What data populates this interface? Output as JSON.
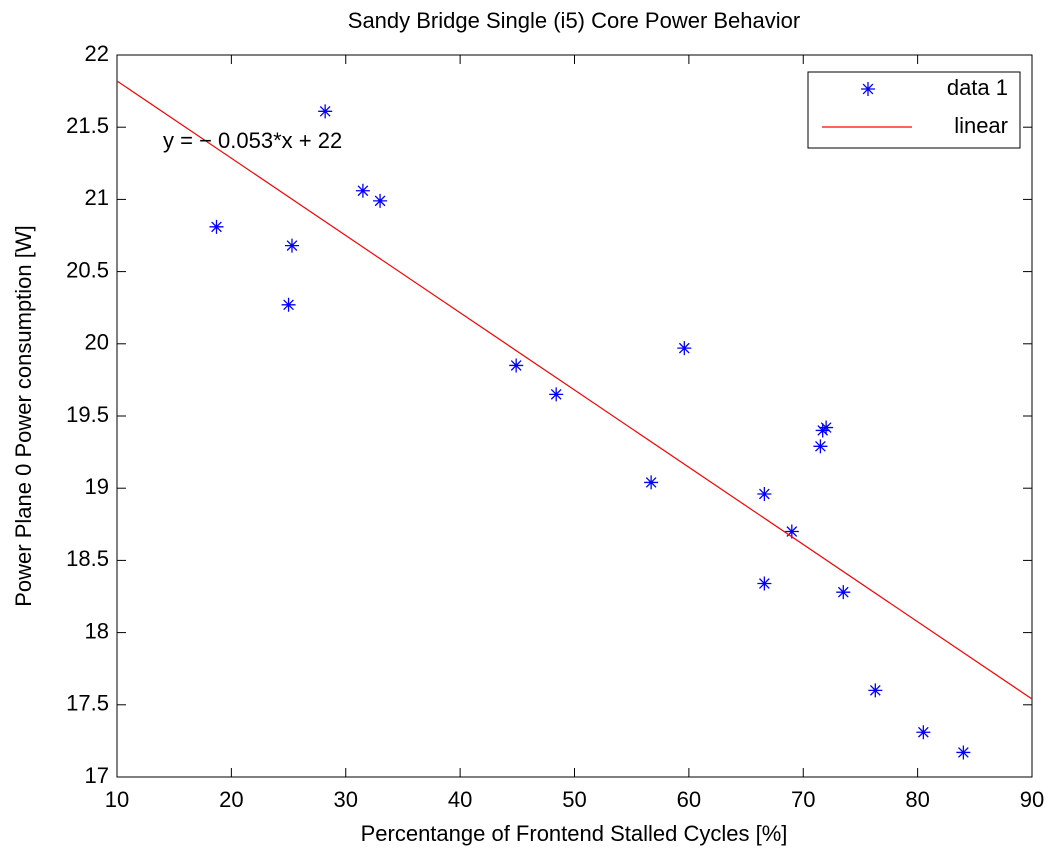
{
  "chart_data": {
    "type": "scatter",
    "title": "Sandy Bridge Single (i5) Core Power Behavior",
    "x_label": "Percentange of Frontend Stalled Cycles [%]",
    "y_label": "Power Plane 0 Power consumption [W]",
    "annotation": "y = − 0.053*x + 22",
    "xlim": [
      10,
      90
    ],
    "ylim": [
      17,
      22
    ],
    "xticks": [
      10,
      20,
      30,
      40,
      50,
      60,
      70,
      80,
      90
    ],
    "yticks": [
      17,
      17.5,
      18,
      18.5,
      19,
      19.5,
      20,
      20.5,
      21,
      21.5,
      22
    ],
    "legend": "upper right",
    "series": [
      {
        "name": "data 1",
        "color": "#0000ff",
        "marker": "*",
        "x": [
          18.7,
          25.3,
          25.0,
          28.2,
          31.5,
          33.0,
          44.9,
          48.4,
          56.7,
          59.6,
          66.6,
          66.6,
          69.0,
          71.5,
          71.7,
          72.0,
          73.5,
          76.3,
          80.5,
          84.0
        ],
        "values": [
          20.81,
          20.68,
          20.27,
          21.61,
          21.06,
          20.99,
          19.85,
          19.65,
          19.04,
          19.97,
          18.96,
          18.34,
          18.7,
          19.29,
          19.4,
          19.42,
          18.28,
          17.6,
          17.31,
          17.17
        ]
      },
      {
        "name": "linear",
        "color": "#ff0000",
        "marker": "line",
        "x": [
          10,
          90
        ],
        "values": [
          21.82,
          17.54
        ]
      }
    ]
  }
}
